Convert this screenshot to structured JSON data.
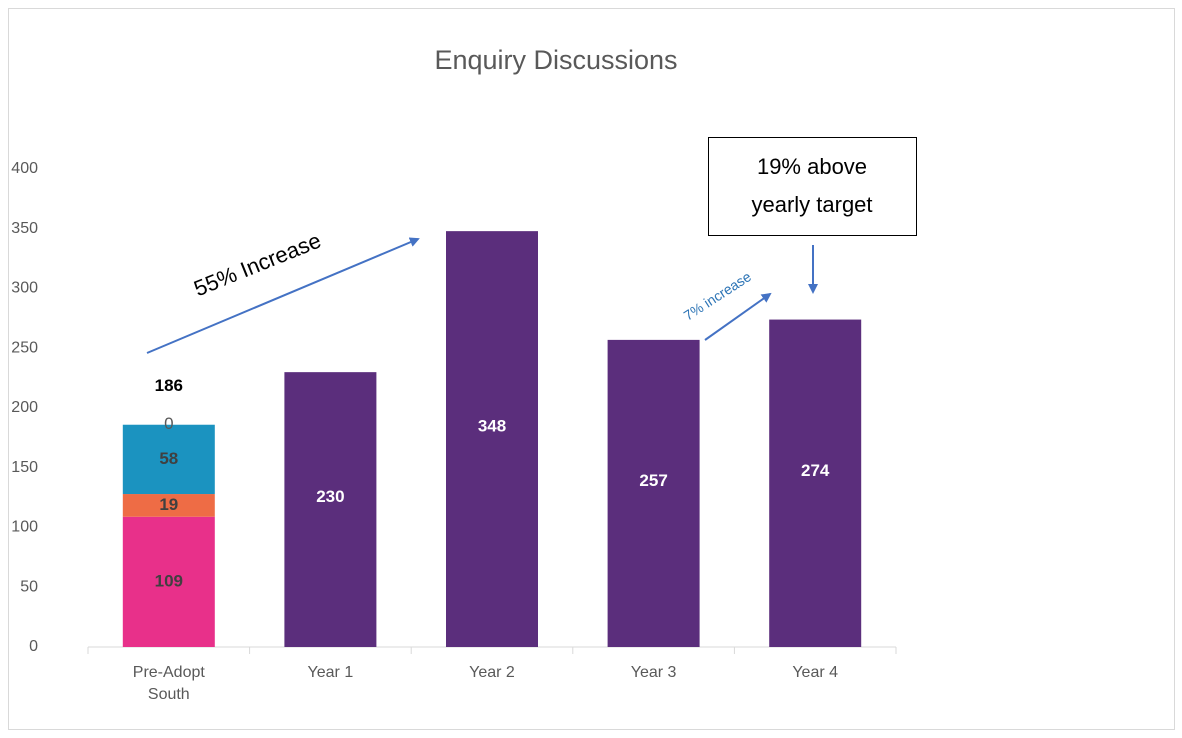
{
  "chart_data": {
    "type": "stacked_bar",
    "title": "Enquiry Discussions",
    "categories": [
      "Pre-Adopt South",
      "Year 1",
      "Year 2",
      "Year 3",
      "Year 4"
    ],
    "series": [
      {
        "color": "#e8308a",
        "label_color": "#404040",
        "values": [
          109,
          null,
          null,
          null,
          null
        ]
      },
      {
        "color": "#ee6c45",
        "label_color": "#404040",
        "values": [
          19,
          null,
          null,
          null,
          null
        ]
      },
      {
        "color": "#1b93c0",
        "label_color": "#404040",
        "values": [
          58,
          null,
          null,
          null,
          null
        ]
      },
      {
        "color": "#7f7f7f",
        "label_color": "#595959",
        "values": [
          0,
          null,
          null,
          null,
          null
        ]
      },
      {
        "color": "#5b2e7c",
        "label_color": "#ffffff",
        "values": [
          null,
          230,
          348,
          257,
          274
        ]
      }
    ],
    "totals": [
      186,
      null,
      null,
      null,
      null
    ],
    "ylim": [
      0,
      400
    ],
    "yticks": [
      0,
      50,
      100,
      150,
      200,
      250,
      300,
      350,
      400
    ],
    "grid": false,
    "annotations": [
      "55% Increase",
      "7% increase"
    ],
    "callout": [
      "19% above",
      "yearly target"
    ]
  }
}
